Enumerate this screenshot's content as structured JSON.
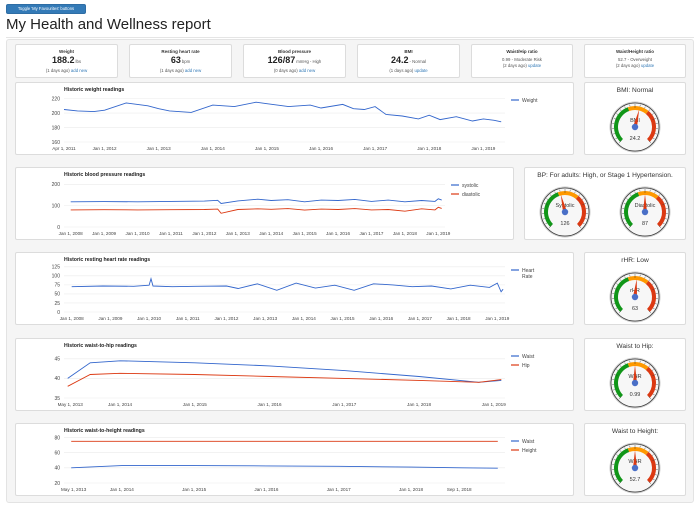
{
  "toggle_button_label": "Toggle 'My Favourites' buttons",
  "page_title": "My Health and Wellness report",
  "metrics": [
    {
      "key": "weight",
      "title": "Weight",
      "value": "188.2",
      "unit": "lbs",
      "status": "",
      "ago": "(1 days ago)",
      "link": "add new"
    },
    {
      "key": "heart-rate",
      "title": "Resting heart rate",
      "value": "63",
      "unit": "bpm",
      "status": "",
      "ago": "(1 days ago)",
      "link": "add new"
    },
    {
      "key": "blood-pressure",
      "title": "Blood pressure",
      "value": "126/87",
      "unit": "mmHg",
      "status": "- High",
      "ago": "(0 days ago)",
      "link": "add new"
    },
    {
      "key": "bmi",
      "title": "BMI",
      "value": "24.2",
      "unit": "",
      "status": "- Normal",
      "ago": "(1 days ago)",
      "link": "update"
    },
    {
      "key": "waist-hip",
      "title": "Waist/Hip ratio",
      "value": "",
      "unit": "",
      "status": "0.99 - Moderate Risk",
      "ago": "(2 days ago)",
      "link": "update"
    },
    {
      "key": "waist-height",
      "title": "Waist/Height ratio",
      "value": "",
      "unit": "",
      "status": "52.7 - Overweight",
      "ago": "(2 days ago)",
      "link": "update"
    }
  ],
  "colors": {
    "blue": "#3366cc",
    "red": "#dc3912",
    "gauge_green": "#109618",
    "gauge_yellow": "#ff9900",
    "gauge_red": "#dc3912",
    "link": "#337ab7"
  },
  "chart_data": [
    {
      "type": "line",
      "title": "Historic weight readings",
      "x_ticks": [
        "Apr 1, 2011",
        "Jan 1, 2012",
        "Jan 1, 2013",
        "Jan 1, 2014",
        "Jan 1, 2015",
        "Jan 1, 2016",
        "Jan 1, 2017",
        "Jan 1, 2018",
        "Jan 1, 2019"
      ],
      "xlim": [
        2011.25,
        2019.4
      ],
      "y_ticks": [
        160,
        180,
        200,
        220
      ],
      "ylim": [
        160,
        225
      ],
      "grid": true,
      "legend_position": "right",
      "series": [
        {
          "name": "Weight",
          "color": "#3366cc",
          "x": [
            2011.25,
            2011.5,
            2011.8,
            2012.0,
            2012.4,
            2012.8,
            2013.0,
            2013.2,
            2013.6,
            2014.0,
            2014.4,
            2014.8,
            2015.0,
            2015.4,
            2015.8,
            2016.0,
            2016.4,
            2016.6,
            2016.8,
            2017.0,
            2017.2,
            2017.5,
            2017.8,
            2018.0,
            2018.2,
            2018.5,
            2018.8,
            2019.0,
            2019.2,
            2019.33
          ],
          "y": [
            205,
            203,
            202,
            204,
            214,
            210,
            206,
            203,
            201,
            211,
            209,
            215,
            213,
            209,
            211,
            207,
            212,
            206,
            205,
            209,
            198,
            196,
            192,
            197,
            191,
            195,
            189,
            192,
            190,
            188
          ]
        }
      ]
    },
    {
      "type": "line",
      "title": "Historic blood pressure readings",
      "x_ticks": [
        "Jan 1, 2008",
        "Jan 1, 2009",
        "Jan 1, 2010",
        "Jan 1, 2011",
        "Jan 1, 2012",
        "Jan 1, 2013",
        "Jan 1, 2014",
        "Jan 1, 2015",
        "Jan 1, 2016",
        "Jan 1, 2017",
        "Jan 1, 2018",
        "Jan 1, 2019"
      ],
      "xlim": [
        2007.8,
        2019.2
      ],
      "y_ticks": [
        0,
        100,
        200
      ],
      "ylim": [
        0,
        220
      ],
      "grid": true,
      "legend_position": "right",
      "series": [
        {
          "name": "systolic",
          "color": "#3366cc",
          "x": [
            2008.0,
            2009.0,
            2010.0,
            2011.0,
            2012.0,
            2012.4,
            2012.5,
            2013.0,
            2013.6,
            2014.0,
            2014.5,
            2015.0,
            2015.5,
            2016.0,
            2016.5,
            2017.0,
            2017.5,
            2018.0,
            2018.5,
            2018.9,
            2019.0,
            2019.1
          ],
          "y": [
            118,
            119,
            118,
            120,
            121,
            125,
            110,
            122,
            130,
            124,
            128,
            118,
            126,
            124,
            129,
            120,
            126,
            118,
            124,
            120,
            132,
            126
          ]
        },
        {
          "name": "diastolic",
          "color": "#dc3912",
          "x": [
            2008.0,
            2009.0,
            2010.0,
            2011.0,
            2012.0,
            2012.4,
            2012.5,
            2013.0,
            2013.6,
            2014.0,
            2014.5,
            2015.0,
            2015.5,
            2016.0,
            2016.5,
            2017.0,
            2017.5,
            2018.0,
            2018.5,
            2018.9,
            2019.0,
            2019.1
          ],
          "y": [
            80,
            81,
            80,
            81,
            82,
            84,
            64,
            82,
            85,
            83,
            86,
            79,
            84,
            82,
            86,
            80,
            82,
            74,
            85,
            80,
            92,
            87
          ]
        }
      ]
    },
    {
      "type": "line",
      "title": "Historic resting heart rate readings",
      "x_ticks": [
        "Jan 1, 2008",
        "Jan 1, 2009",
        "Jan 1, 2010",
        "Jan 1, 2011",
        "Jan 1, 2012",
        "Jan 1, 2013",
        "Jan 1, 2014",
        "Jan 1, 2015",
        "Jan 1, 2016",
        "Jan 1, 2017",
        "Jan 1, 2018",
        "Jan 1, 2019"
      ],
      "xlim": [
        2007.8,
        2019.2
      ],
      "y_ticks": [
        0,
        25,
        50,
        75,
        100,
        125
      ],
      "ylim": [
        0,
        130
      ],
      "grid": true,
      "legend_position": "right",
      "series": [
        {
          "name": "Heart Rate",
          "color": "#3366cc",
          "x": [
            2008.0,
            2008.8,
            2009.6,
            2010.0,
            2010.05,
            2010.1,
            2010.6,
            2011.2,
            2012.0,
            2012.3,
            2012.8,
            2013.3,
            2013.8,
            2014.3,
            2014.8,
            2015.3,
            2015.8,
            2016.3,
            2016.8,
            2017.3,
            2017.8,
            2018.3,
            2018.8,
            2019.0,
            2019.1,
            2019.15
          ],
          "y": [
            70,
            72,
            71,
            74,
            92,
            72,
            70,
            71,
            72,
            65,
            78,
            60,
            80,
            66,
            74,
            60,
            78,
            75,
            70,
            72,
            64,
            74,
            68,
            80,
            56,
            63
          ]
        }
      ]
    },
    {
      "type": "line",
      "title": "Historic waist-to-hip readings",
      "x_ticks": [
        "May 1, 2013",
        "Jan 1, 2014",
        "Jan 1, 2015",
        "Jan 1, 2016",
        "Jan 1, 2017",
        "Jan 1, 2018",
        "Jan 1, 2019"
      ],
      "xlim": [
        2013.25,
        2019.15
      ],
      "y_ticks": [
        35,
        40,
        45
      ],
      "ylim": [
        35,
        47
      ],
      "grid": true,
      "legend_position": "right",
      "series": [
        {
          "name": "Waist",
          "color": "#3366cc",
          "x": [
            2013.3,
            2013.6,
            2014.0,
            2015.0,
            2016.0,
            2017.0,
            2018.0,
            2018.8,
            2019.1
          ],
          "y": [
            40,
            44,
            44.5,
            44,
            43.2,
            42,
            40.5,
            39,
            39.5
          ]
        },
        {
          "name": "Hip",
          "color": "#dc3912",
          "x": [
            2013.3,
            2013.6,
            2014.0,
            2015.0,
            2016.0,
            2017.0,
            2018.0,
            2018.8,
            2019.1
          ],
          "y": [
            38,
            41,
            41.3,
            41,
            40.5,
            40,
            39.5,
            39,
            39.7
          ]
        }
      ]
    },
    {
      "type": "line",
      "title": "Historic waist-to-height readings",
      "x_ticks": [
        "May 1, 2013",
        "Jan 1, 2014",
        "Jan 1, 2015",
        "Jan 1, 2016",
        "Jan 1, 2017",
        "Jan 1, 2018",
        "Sep 1, 2018"
      ],
      "xlim": [
        2013.2,
        2019.3
      ],
      "y_ticks": [
        20,
        40,
        60,
        80
      ],
      "ylim": [
        20,
        82
      ],
      "grid": true,
      "legend_position": "right",
      "series": [
        {
          "name": "Waist",
          "color": "#3366cc",
          "x": [
            2013.3,
            2014.0,
            2015.0,
            2016.0,
            2017.0,
            2018.0,
            2018.7,
            2019.2
          ],
          "y": [
            40,
            43,
            43,
            42.5,
            42,
            41,
            40,
            39.5
          ]
        },
        {
          "name": "Height",
          "color": "#dc3912",
          "x": [
            2013.3,
            2019.2
          ],
          "y": [
            75,
            75
          ]
        }
      ]
    }
  ],
  "gauges": [
    {
      "title": "BMI: Normal",
      "dials": [
        {
          "label": "BMI",
          "value_text": "24.2",
          "fraction": 0.55
        }
      ]
    },
    {
      "title": "BP: For adults: High, or Stage 1 Hypertension.",
      "dials": [
        {
          "label": "Systolic",
          "value_text": "126",
          "fraction": 0.45
        },
        {
          "label": "Diastolic",
          "value_text": "87",
          "fraction": 0.5
        }
      ]
    },
    {
      "title": "rHR: Low",
      "dials": [
        {
          "label": "rHR",
          "value_text": "63",
          "fraction": 0.52
        }
      ]
    },
    {
      "title": "Waist to Hip:",
      "dials": [
        {
          "label": "WHR",
          "value_text": "0.99",
          "fraction": 0.5
        }
      ]
    },
    {
      "title": "Waist to Height:",
      "dials": [
        {
          "label": "WHR",
          "value_text": "52.7",
          "fraction": 0.5
        }
      ]
    }
  ]
}
